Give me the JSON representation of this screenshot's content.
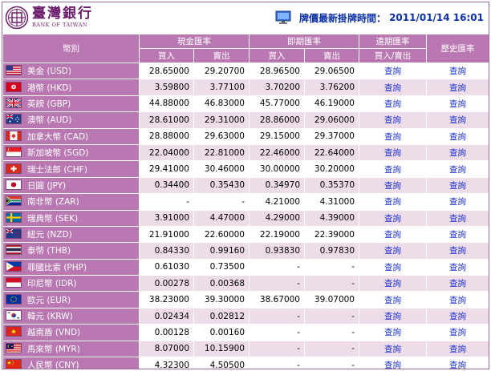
{
  "header": {
    "bank_name_cn": "臺灣銀行",
    "bank_name_en": "BANK OF TAIWAN",
    "update_label": "牌價最新掛牌時間：",
    "update_time": "2011/01/14 16:01",
    "brand_color": "#6a1b6a",
    "accent_color": "#0a2fa8"
  },
  "table": {
    "col_currency": "幣別",
    "group_cash": "現金匯率",
    "group_spot": "即期匯率",
    "group_forward": "遠期匯率",
    "col_history": "歷史匯率",
    "buy_label": "買入",
    "sell_label": "賣出",
    "forward_sub": "買入/賣出",
    "header_color": "#b978b1",
    "alt_row_color": "#eedde9",
    "link_color": "#1a2fd0",
    "rows": [
      {
        "currency": "美金 (USD)",
        "flag": "us-flag-icon",
        "cash_buy": "28.65000",
        "cash_sell": "29.20700",
        "spot_buy": "28.96500",
        "spot_sell": "29.06500",
        "forward": "查詢",
        "history": "查詢"
      },
      {
        "currency": "港幣 (HKD)",
        "flag": "hk-flag-icon",
        "cash_buy": "3.59800",
        "cash_sell": "3.77100",
        "spot_buy": "3.70200",
        "spot_sell": "3.76200",
        "forward": "查詢",
        "history": "查詢"
      },
      {
        "currency": "英鎊 (GBP)",
        "flag": "gb-flag-icon",
        "cash_buy": "44.88000",
        "cash_sell": "46.83000",
        "spot_buy": "45.77000",
        "spot_sell": "46.19000",
        "forward": "查詢",
        "history": "查詢"
      },
      {
        "currency": "澳幣 (AUD)",
        "flag": "au-flag-icon",
        "cash_buy": "28.61000",
        "cash_sell": "29.31000",
        "spot_buy": "28.86000",
        "spot_sell": "29.06000",
        "forward": "查詢",
        "history": "查詢"
      },
      {
        "currency": "加拿大幣 (CAD)",
        "flag": "ca-flag-icon",
        "cash_buy": "28.88000",
        "cash_sell": "29.63000",
        "spot_buy": "29.15000",
        "spot_sell": "29.37000",
        "forward": "查詢",
        "history": "查詢"
      },
      {
        "currency": "新加坡幣 (SGD)",
        "flag": "sg-flag-icon",
        "cash_buy": "22.04000",
        "cash_sell": "22.81000",
        "spot_buy": "22.46000",
        "spot_sell": "22.64000",
        "forward": "查詢",
        "history": "查詢"
      },
      {
        "currency": "瑞士法郎 (CHF)",
        "flag": "ch-flag-icon",
        "cash_buy": "29.41000",
        "cash_sell": "30.46000",
        "spot_buy": "30.00000",
        "spot_sell": "30.20000",
        "forward": "查詢",
        "history": "查詢"
      },
      {
        "currency": "日圓 (JPY)",
        "flag": "jp-flag-icon",
        "cash_buy": "0.34400",
        "cash_sell": "0.35430",
        "spot_buy": "0.34970",
        "spot_sell": "0.35370",
        "forward": "查詢",
        "history": "查詢"
      },
      {
        "currency": "南非幣 (ZAR)",
        "flag": "za-flag-icon",
        "cash_buy": "-",
        "cash_sell": "-",
        "spot_buy": "4.21000",
        "spot_sell": "4.31000",
        "forward": "查詢",
        "history": "查詢"
      },
      {
        "currency": "瑞典幣 (SEK)",
        "flag": "se-flag-icon",
        "cash_buy": "3.91000",
        "cash_sell": "4.47000",
        "spot_buy": "4.29000",
        "spot_sell": "4.39000",
        "forward": "查詢",
        "history": "查詢"
      },
      {
        "currency": "紐元 (NZD)",
        "flag": "nz-flag-icon",
        "cash_buy": "21.91000",
        "cash_sell": "22.60000",
        "spot_buy": "22.19000",
        "spot_sell": "22.39000",
        "forward": "查詢",
        "history": "查詢"
      },
      {
        "currency": "泰幣 (THB)",
        "flag": "th-flag-icon",
        "cash_buy": "0.84330",
        "cash_sell": "0.99160",
        "spot_buy": "0.93830",
        "spot_sell": "0.97830",
        "forward": "查詢",
        "history": "查詢"
      },
      {
        "currency": "菲國比索 (PHP)",
        "flag": "ph-flag-icon",
        "cash_buy": "0.61030",
        "cash_sell": "0.73500",
        "spot_buy": "-",
        "spot_sell": "-",
        "forward": "查詢",
        "history": "查詢"
      },
      {
        "currency": "印尼幣 (IDR)",
        "flag": "id-flag-icon",
        "cash_buy": "0.00278",
        "cash_sell": "0.00368",
        "spot_buy": "-",
        "spot_sell": "-",
        "forward": "查詢",
        "history": "查詢"
      },
      {
        "currency": "歐元 (EUR)",
        "flag": "eu-flag-icon",
        "cash_buy": "38.23000",
        "cash_sell": "39.30000",
        "spot_buy": "38.67000",
        "spot_sell": "39.07000",
        "forward": "查詢",
        "history": "查詢"
      },
      {
        "currency": "韓元 (KRW)",
        "flag": "kr-flag-icon",
        "cash_buy": "0.02434",
        "cash_sell": "0.02812",
        "spot_buy": "-",
        "spot_sell": "-",
        "forward": "查詢",
        "history": "查詢"
      },
      {
        "currency": "越南盾 (VND)",
        "flag": "vn-flag-icon",
        "cash_buy": "0.00128",
        "cash_sell": "0.00160",
        "spot_buy": "-",
        "spot_sell": "-",
        "forward": "查詢",
        "history": "查詢"
      },
      {
        "currency": "馬來幣 (MYR)",
        "flag": "my-flag-icon",
        "cash_buy": "8.07000",
        "cash_sell": "10.15900",
        "spot_buy": "-",
        "spot_sell": "-",
        "forward": "查詢",
        "history": "查詢"
      },
      {
        "currency": "人民幣 (CNY)",
        "flag": "cn-flag-icon",
        "cash_buy": "4.32300",
        "cash_sell": "4.50500",
        "spot_buy": "-",
        "spot_sell": "-",
        "forward": "查詢",
        "history": "查詢"
      }
    ]
  }
}
